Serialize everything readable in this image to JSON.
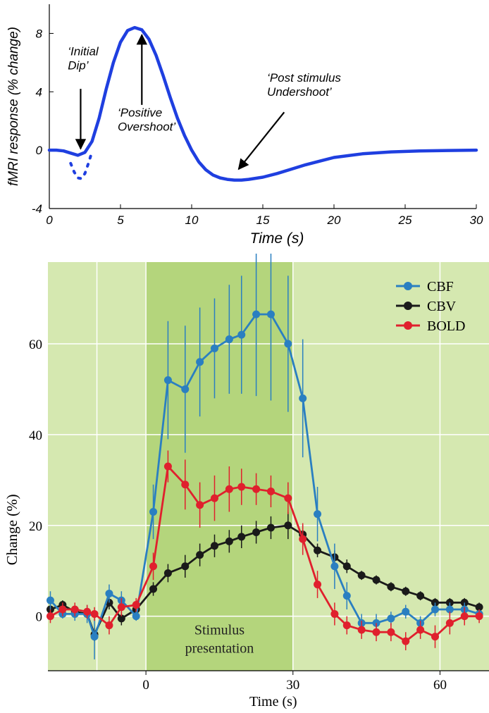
{
  "chart_data": [
    {
      "type": "line",
      "xlabel": "Time (s)",
      "ylabel": "fMRI response (% change)",
      "xlim": [
        0,
        30
      ],
      "ylim": [
        -4,
        10
      ],
      "x_ticks": [
        0,
        5,
        10,
        15,
        20,
        25,
        30
      ],
      "y_ticks": [
        -4,
        0,
        4,
        8
      ],
      "grid": false,
      "colors": {
        "line": "#1f3fe0",
        "arrow": "#000000"
      },
      "series": [
        {
          "x": [
            0,
            0.5,
            1,
            1.5,
            2,
            2.5,
            3,
            3.5,
            4,
            4.5,
            5,
            5.5,
            6,
            6.5,
            7,
            7.5,
            8,
            8.5,
            9,
            9.5,
            10,
            10.5,
            11,
            11.5,
            12,
            12.5,
            13,
            13.5,
            14,
            15,
            16,
            17,
            18,
            19,
            20,
            22,
            24,
            26,
            28,
            30
          ],
          "y": [
            0,
            0,
            -0.05,
            -0.2,
            -0.35,
            -0.15,
            0.6,
            2.2,
            4.2,
            6.0,
            7.4,
            8.2,
            8.4,
            8.25,
            7.6,
            6.5,
            5.1,
            3.6,
            2.2,
            1.0,
            0.0,
            -0.8,
            -1.35,
            -1.7,
            -1.9,
            -2.0,
            -2.05,
            -2.05,
            -2.0,
            -1.85,
            -1.6,
            -1.3,
            -1.0,
            -0.75,
            -0.5,
            -0.25,
            -0.12,
            -0.05,
            -0.02,
            0
          ]
        },
        {
          "style": "dotted",
          "x": [
            1.5,
            1.75,
            2.0,
            2.25,
            2.5,
            2.75,
            3.0
          ],
          "y": [
            -0.9,
            -1.5,
            -1.9,
            -1.95,
            -1.6,
            -0.9,
            -0.1
          ]
        }
      ],
      "annotations": [
        {
          "lines": [
            "‘Initial",
            "Dip’"
          ],
          "text_at": [
            1.3,
            6.5
          ],
          "arrow_from": [
            2.2,
            4.2
          ],
          "arrow_to": [
            2.2,
            0.1
          ]
        },
        {
          "lines": [
            "‘Positive",
            "Overshoot’"
          ],
          "text_at": [
            4.8,
            2.3
          ],
          "arrow_from": [
            6.5,
            3.1
          ],
          "arrow_to": [
            6.5,
            7.9
          ]
        },
        {
          "lines": [
            "‘Post stimulus",
            "Undershoot’"
          ],
          "text_at": [
            15.3,
            4.7
          ],
          "arrow_from": [
            16.5,
            2.6
          ],
          "arrow_to": [
            13.3,
            -1.3
          ]
        }
      ]
    },
    {
      "type": "line",
      "xlabel": "Time (s)",
      "ylabel": "Change (%)",
      "xlim": [
        -20,
        70
      ],
      "ylim": [
        -12,
        78
      ],
      "x_ticks": [
        0,
        30,
        60
      ],
      "y_ticks": [
        0,
        20,
        40,
        60
      ],
      "grid": true,
      "legend_position": "top-right",
      "stimulus_window": [
        0,
        30
      ],
      "stimulus_label": [
        "Stimulus",
        "presentation"
      ],
      "colors": {
        "background": "#d5e8b0",
        "stimulus": "#b4d57c",
        "grid": "#ffffff"
      },
      "series": [
        {
          "name": "CBF",
          "color": "#2a7fc1",
          "x": [
            -19.5,
            -17,
            -14.5,
            -12,
            -10.5,
            -7.5,
            -5,
            -2,
            1.5,
            4.5,
            8,
            11,
            14,
            17,
            19.5,
            22.5,
            25.5,
            29,
            32,
            35,
            38.5,
            41,
            44,
            47,
            50,
            53,
            56,
            59,
            62,
            65,
            68
          ],
          "y": [
            3.5,
            0.5,
            0.5,
            0.5,
            -4.5,
            5,
            3.5,
            0,
            23,
            52,
            50,
            56,
            59,
            61,
            62,
            66.5,
            66.5,
            60,
            48,
            22.5,
            11,
            4.5,
            -1.5,
            -1.5,
            -0.5,
            1,
            -1.5,
            1.5,
            1.5,
            1.5,
            0.5
          ],
          "err": [
            2,
            1,
            1.5,
            2,
            5,
            2,
            2,
            1,
            6,
            13,
            14,
            12,
            11,
            12,
            13,
            18,
            19,
            15,
            13,
            6,
            5,
            3,
            2,
            2,
            1.5,
            1.5,
            1.5,
            1.5,
            1.5,
            1.5,
            1
          ]
        },
        {
          "name": "CBV",
          "color": "#1a1a1a",
          "x": [
            -19.5,
            -17,
            -14.5,
            -12,
            -10.5,
            -7.5,
            -5,
            -2,
            1.5,
            4.5,
            8,
            11,
            14,
            17,
            19.5,
            22.5,
            25.5,
            29,
            32,
            35,
            38.5,
            41,
            44,
            47,
            50,
            53,
            56,
            59,
            62,
            65,
            68
          ],
          "y": [
            1.5,
            2.5,
            1,
            0.5,
            -4,
            3,
            -0.5,
            1.5,
            6,
            9.5,
            11,
            13.5,
            15.5,
            16.5,
            17.5,
            18.5,
            19.5,
            20,
            18,
            14.5,
            13,
            11,
            9,
            8,
            6.5,
            5.5,
            4.5,
            3,
            3,
            3,
            2
          ],
          "err": [
            1,
            1,
            1,
            1,
            1.5,
            1.5,
            1.5,
            1,
            1.5,
            2,
            2.5,
            2.5,
            2.5,
            2.5,
            2.5,
            2.5,
            2.5,
            3,
            2,
            1.5,
            1.5,
            1.5,
            1,
            1,
            1,
            1,
            1,
            1,
            1,
            1,
            1
          ]
        },
        {
          "name": "BOLD",
          "color": "#e0202d",
          "x": [
            -19.5,
            -17,
            -14.5,
            -12,
            -10.5,
            -7.5,
            -5,
            -2,
            1.5,
            4.5,
            8,
            11,
            14,
            17,
            19.5,
            22.5,
            25.5,
            29,
            32,
            35,
            38.5,
            41,
            44,
            47,
            50,
            53,
            56,
            59,
            62,
            65,
            68
          ],
          "y": [
            0,
            1.5,
            1.5,
            1,
            0.5,
            -2,
            2,
            2.5,
            11,
            33,
            29,
            24.5,
            26,
            28,
            28.5,
            28,
            27.5,
            26,
            17,
            7,
            0.5,
            -2,
            -3,
            -3.5,
            -3.5,
            -5.5,
            -3,
            -4.5,
            -1.5,
            0,
            0
          ],
          "err": [
            1.5,
            1.5,
            1.5,
            1.5,
            1.5,
            2,
            2,
            1.5,
            3,
            3.5,
            5.5,
            5,
            5,
            5,
            4,
            3.5,
            3.5,
            3.5,
            3.5,
            3,
            2.5,
            2,
            2,
            2,
            2,
            2,
            2,
            2.5,
            2.5,
            2,
            1.5
          ]
        }
      ]
    }
  ]
}
